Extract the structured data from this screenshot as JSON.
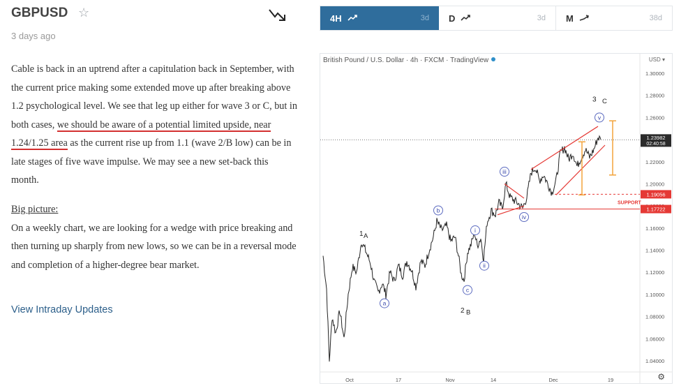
{
  "header": {
    "symbol": "GBPUSD",
    "star_icon": "star-icon",
    "trend_icon": "trend-down-arrow-icon",
    "posted": "3 days ago"
  },
  "article": {
    "p1_a": "Cable is back in an uptrend after a capitulation back in September, with the current price making some extended move up after breaking above 1.2 psychological level. We see that leg up either for wave 3 or C, but in both cases, ",
    "p1_highlight": "we should be aware of a potential limited upside, near 1.24/1.25 area",
    "p1_b": " as the current rise up from 1.1 (wave 2/B low) can be in late stages of five wave impulse.  We may see a new set-back this month.",
    "big_picture_title": "Big picture:",
    "big_picture_text": "On a weekly chart, we are looking for a wedge with price breaking and then turning up sharply from new lows,  so we can be in a reversal mode and completion of a higher-degree bear market.",
    "link": "View Intraday Updates"
  },
  "tabs": [
    {
      "label": "4H",
      "range": "3d",
      "active": true
    },
    {
      "label": "D",
      "range": "3d",
      "active": false
    },
    {
      "label": "M",
      "range": "38d",
      "active": false
    }
  ],
  "chart_data": {
    "type": "line",
    "title": "British Pound / U.S. Dollar · 4h · FXCM · TradingView",
    "currency_label": "USD",
    "x_ticks": [
      "Oct",
      "17",
      "Nov",
      "14",
      "Dec",
      "19"
    ],
    "y_ticks": [
      "1.30000",
      "1.28000",
      "1.26000",
      "1.24000",
      "1.22000",
      "1.20000",
      "1.18000",
      "1.16000",
      "1.14000",
      "1.12000",
      "1.10000",
      "1.08000",
      "1.06000",
      "1.04000"
    ],
    "ylim": [
      1.03,
      1.31
    ],
    "current_price": "1.23982",
    "countdown": "02:40:58",
    "levels": [
      {
        "value": 1.19056,
        "label": "1.19056",
        "style": "dashed"
      },
      {
        "value": 1.17722,
        "label": "1.17722",
        "style": "solid"
      }
    ],
    "support_label": "SUPPORT",
    "wave_labels": [
      "1A",
      "a",
      "b",
      "c",
      "2 B",
      "i",
      "ii",
      "iii",
      "iv",
      "v",
      "3  C"
    ],
    "price_path": [
      {
        "x": 0,
        "y": 1.135
      },
      {
        "x": 5,
        "y": 1.105
      },
      {
        "x": 9,
        "y": 1.04
      },
      {
        "x": 13,
        "y": 1.08
      },
      {
        "x": 18,
        "y": 1.065
      },
      {
        "x": 24,
        "y": 1.085
      },
      {
        "x": 30,
        "y": 1.06
      },
      {
        "x": 36,
        "y": 1.1
      },
      {
        "x": 42,
        "y": 1.125
      },
      {
        "x": 48,
        "y": 1.12
      },
      {
        "x": 55,
        "y": 1.148
      },
      {
        "x": 62,
        "y": 1.138
      },
      {
        "x": 68,
        "y": 1.128
      },
      {
        "x": 73,
        "y": 1.112
      },
      {
        "x": 79,
        "y": 1.102
      },
      {
        "x": 85,
        "y": 1.11
      },
      {
        "x": 90,
        "y": 1.1
      },
      {
        "x": 96,
        "y": 1.12
      },
      {
        "x": 102,
        "y": 1.112
      },
      {
        "x": 108,
        "y": 1.126
      },
      {
        "x": 114,
        "y": 1.117
      },
      {
        "x": 120,
        "y": 1.13
      },
      {
        "x": 127,
        "y": 1.122
      },
      {
        "x": 133,
        "y": 1.107
      },
      {
        "x": 140,
        "y": 1.13
      },
      {
        "x": 146,
        "y": 1.126
      },
      {
        "x": 152,
        "y": 1.14
      },
      {
        "x": 158,
        "y": 1.152
      },
      {
        "x": 163,
        "y": 1.166
      },
      {
        "x": 170,
        "y": 1.158
      },
      {
        "x": 177,
        "y": 1.162
      },
      {
        "x": 183,
        "y": 1.148
      },
      {
        "x": 189,
        "y": 1.152
      },
      {
        "x": 194,
        "y": 1.135
      },
      {
        "x": 198,
        "y": 1.118
      },
      {
        "x": 202,
        "y": 1.113
      },
      {
        "x": 207,
        "y": 1.138
      },
      {
        "x": 212,
        "y": 1.145
      },
      {
        "x": 217,
        "y": 1.156
      },
      {
        "x": 221,
        "y": 1.144
      },
      {
        "x": 226,
        "y": 1.151
      },
      {
        "x": 230,
        "y": 1.132
      },
      {
        "x": 235,
        "y": 1.165
      },
      {
        "x": 241,
        "y": 1.176
      },
      {
        "x": 247,
        "y": 1.172
      },
      {
        "x": 252,
        "y": 1.183
      },
      {
        "x": 257,
        "y": 1.178
      },
      {
        "x": 262,
        "y": 1.2
      },
      {
        "x": 268,
        "y": 1.188
      },
      {
        "x": 274,
        "y": 1.185
      },
      {
        "x": 280,
        "y": 1.182
      },
      {
        "x": 286,
        "y": 1.178
      },
      {
        "x": 292,
        "y": 1.188
      },
      {
        "x": 298,
        "y": 1.21
      },
      {
        "x": 304,
        "y": 1.215
      },
      {
        "x": 310,
        "y": 1.203
      },
      {
        "x": 316,
        "y": 1.208
      },
      {
        "x": 322,
        "y": 1.2
      },
      {
        "x": 328,
        "y": 1.192
      },
      {
        "x": 334,
        "y": 1.203
      },
      {
        "x": 340,
        "y": 1.228
      },
      {
        "x": 346,
        "y": 1.233
      },
      {
        "x": 352,
        "y": 1.222
      },
      {
        "x": 358,
        "y": 1.228
      },
      {
        "x": 364,
        "y": 1.216
      },
      {
        "x": 370,
        "y": 1.224
      },
      {
        "x": 376,
        "y": 1.231
      },
      {
        "x": 382,
        "y": 1.224
      },
      {
        "x": 388,
        "y": 1.231
      },
      {
        "x": 394,
        "y": 1.242
      },
      {
        "x": 398,
        "y": 1.24
      }
    ]
  }
}
